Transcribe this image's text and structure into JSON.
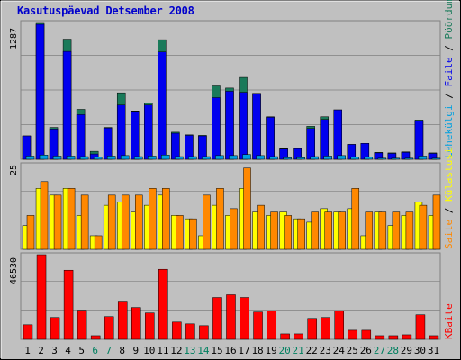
{
  "title": "Kasutuspäevad Detsember 2008",
  "colors": {
    "background": "#c0c0c0",
    "title": "#0000cc",
    "hits": "#1a7a5a",
    "files": "#0000ee",
    "pages": "#00a0e0",
    "visits": "#ffff00",
    "sites": "#ff8800",
    "kbytes": "#ff0000",
    "weekend_label": "#008060",
    "weekday_label": "#000000"
  },
  "chart_data": [
    {
      "type": "bar",
      "name": "top",
      "ymax_label": "1287",
      "ylim": [
        0,
        1287
      ],
      "categories": [
        "1",
        "2",
        "3",
        "4",
        "5",
        "6",
        "7",
        "8",
        "9",
        "10",
        "11",
        "12",
        "13",
        "14",
        "15",
        "16",
        "17",
        "18",
        "19",
        "20",
        "21",
        "22",
        "23",
        "24",
        "25",
        "26",
        "27",
        "28",
        "29",
        "30",
        "31"
      ],
      "weekend": [
        "6",
        "7",
        "13",
        "14",
        "20",
        "21",
        "27",
        "28"
      ],
      "legend": [
        "Pöördumisi",
        "/",
        "Faile",
        "/",
        "Lehekülgi"
      ],
      "series": [
        {
          "name": "Pöördumisi",
          "values": [
            220,
            1287,
            300,
            1130,
            470,
            75,
            300,
            625,
            455,
            530,
            1125,
            255,
            230,
            225,
            690,
            670,
            770,
            620,
            400,
            100,
            100,
            310,
            400,
            465,
            140,
            150,
            65,
            60,
            70,
            370,
            60
          ]
        },
        {
          "name": "Faile",
          "values": [
            220,
            1270,
            285,
            1015,
            420,
            50,
            295,
            510,
            450,
            510,
            1010,
            245,
            225,
            220,
            580,
            640,
            630,
            620,
            395,
            95,
            100,
            290,
            375,
            465,
            140,
            150,
            60,
            55,
            65,
            360,
            55
          ]
        },
        {
          "name": "Lehekülgi",
          "values": [
            30,
            40,
            30,
            30,
            25,
            20,
            30,
            35,
            25,
            30,
            40,
            25,
            25,
            25,
            35,
            35,
            45,
            35,
            25,
            15,
            15,
            25,
            30,
            35,
            20,
            20,
            10,
            10,
            10,
            30,
            10
          ]
        }
      ]
    },
    {
      "type": "bar",
      "name": "middle",
      "ymax_label": "25",
      "ylim": [
        0,
        25
      ],
      "series": [
        {
          "name": "Külastusi",
          "values": [
            7,
            18,
            16,
            18,
            10,
            4,
            13,
            14,
            11,
            13,
            16,
            10,
            9,
            4,
            13,
            10,
            18,
            11,
            10,
            11,
            9,
            8,
            12,
            11,
            12,
            4,
            11,
            7,
            10,
            14,
            10
          ]
        },
        {
          "name": "Saite",
          "values": [
            10,
            20,
            16,
            18,
            16,
            4,
            16,
            16,
            16,
            18,
            18,
            10,
            9,
            16,
            18,
            12,
            24,
            13,
            11,
            10,
            9,
            11,
            11,
            11,
            18,
            11,
            11,
            11,
            11,
            13,
            16
          ]
        }
      ],
      "legend": [
        "Saite",
        "/",
        "Külastusi"
      ]
    },
    {
      "type": "bar",
      "name": "bottom",
      "ymax_label": "46530",
      "ylim": [
        0,
        46530
      ],
      "series": [
        {
          "name": "KBaite",
          "values": [
            8000,
            46530,
            12000,
            38000,
            16000,
            2000,
            12500,
            21000,
            17500,
            14500,
            38500,
            9500,
            8500,
            7500,
            23000,
            24500,
            23000,
            15000,
            15500,
            3000,
            3000,
            11500,
            12000,
            15500,
            5000,
            5000,
            2000,
            2000,
            2500,
            13500,
            2000
          ]
        }
      ],
      "legend": [
        "KBaite"
      ]
    }
  ]
}
